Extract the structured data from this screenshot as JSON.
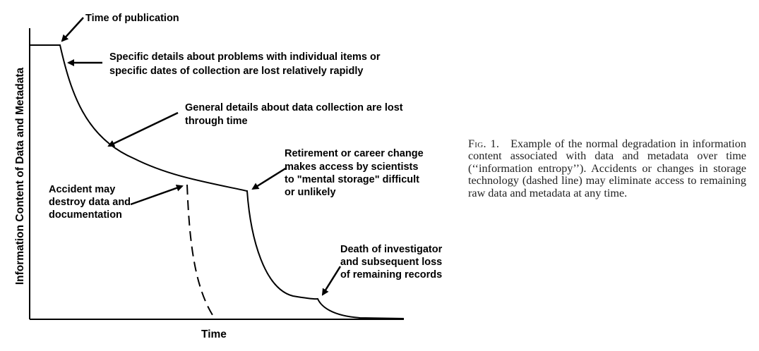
{
  "figure": {
    "ylabel": "Information Content of Data and Metadata",
    "xlabel": "Time",
    "annotations": {
      "publication": "Time of publication",
      "specific": [
        "Specific details about problems with individual items or",
        "specific dates of collection are lost relatively rapidly"
      ],
      "general": [
        "General details about data collection are lost",
        "through time"
      ],
      "retirement": [
        "Retirement or career change",
        "makes access by scientists",
        "to \"mental storage\" difficult",
        "or unlikely"
      ],
      "accident": [
        "Accident may",
        "destroy data and",
        "documentation"
      ],
      "death": [
        "Death of investigator",
        "and subsequent loss",
        "of remaining records"
      ]
    },
    "line_styles": {
      "main": "solid",
      "accident": "dashed"
    }
  },
  "caption": {
    "label": "Fig. 1.",
    "text": "Example of the normal degradation in information content associated with data and metadata over time (‘‘information entropy’’). Accidents or changes in storage technology (dashed line) may eliminate access to remaining raw data and metadata at any time."
  }
}
